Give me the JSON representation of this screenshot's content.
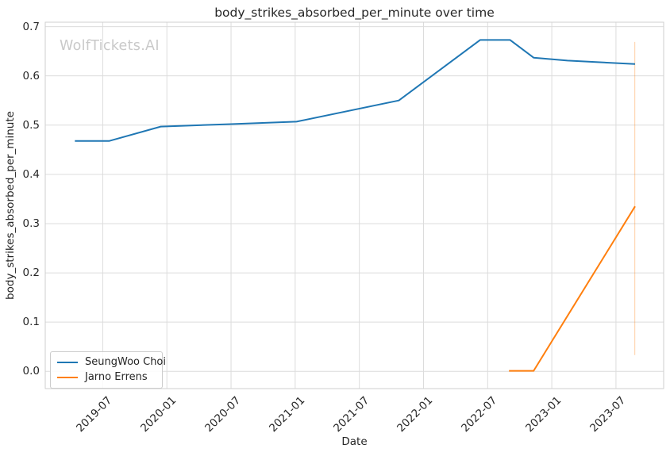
{
  "watermark": "WolfTickets.AI",
  "chart_data": {
    "type": "line",
    "title": "body_strikes_absorbed_per_minute over time",
    "xlabel": "Date",
    "ylabel": "body_strikes_absorbed_per_minute",
    "x_tick_labels": [
      "2019-07",
      "2020-01",
      "2020-07",
      "2021-01",
      "2021-07",
      "2022-01",
      "2022-07",
      "2023-01",
      "2023-07"
    ],
    "y_tick_labels": [
      "0.0",
      "0.1",
      "0.2",
      "0.3",
      "0.4",
      "0.5",
      "0.6",
      "0.7"
    ],
    "xlim": [
      "2019-01-20",
      "2023-11-15"
    ],
    "ylim": [
      -0.035,
      0.709
    ],
    "grid": true,
    "background": "#ffffff",
    "grid_color": "#dcdcdc",
    "spine_color": "#cfcfcf",
    "legend": {
      "position": "lower-left",
      "entries": [
        "SeungWoo Choi",
        "Jarno Errens"
      ]
    },
    "series": [
      {
        "name": "SeungWoo Choi",
        "color": "#1f77b4",
        "points": [
          [
            "2019-04-13",
            0.468
          ],
          [
            "2019-07-20",
            0.468
          ],
          [
            "2019-12-14",
            0.497
          ],
          [
            "2020-07-01",
            0.502
          ],
          [
            "2021-01-05",
            0.507
          ],
          [
            "2021-10-22",
            0.55
          ],
          [
            "2022-06-10",
            0.673
          ],
          [
            "2022-09-04",
            0.673
          ],
          [
            "2022-11-10",
            0.637
          ],
          [
            "2023-02-15",
            0.631
          ],
          [
            "2023-08-25",
            0.624
          ]
        ]
      },
      {
        "name": "Jarno Errens",
        "color": "#ff7f0e",
        "points": [
          [
            "2022-09-01",
            0.001
          ],
          [
            "2022-11-10",
            0.001
          ],
          [
            "2023-08-25",
            0.335
          ]
        ]
      }
    ],
    "annotations": [
      {
        "type": "vline",
        "date": "2023-08-24",
        "color": "#ff7f0e",
        "opacity": 0.3,
        "y_from": 0.033,
        "y_to": 0.669
      }
    ]
  }
}
